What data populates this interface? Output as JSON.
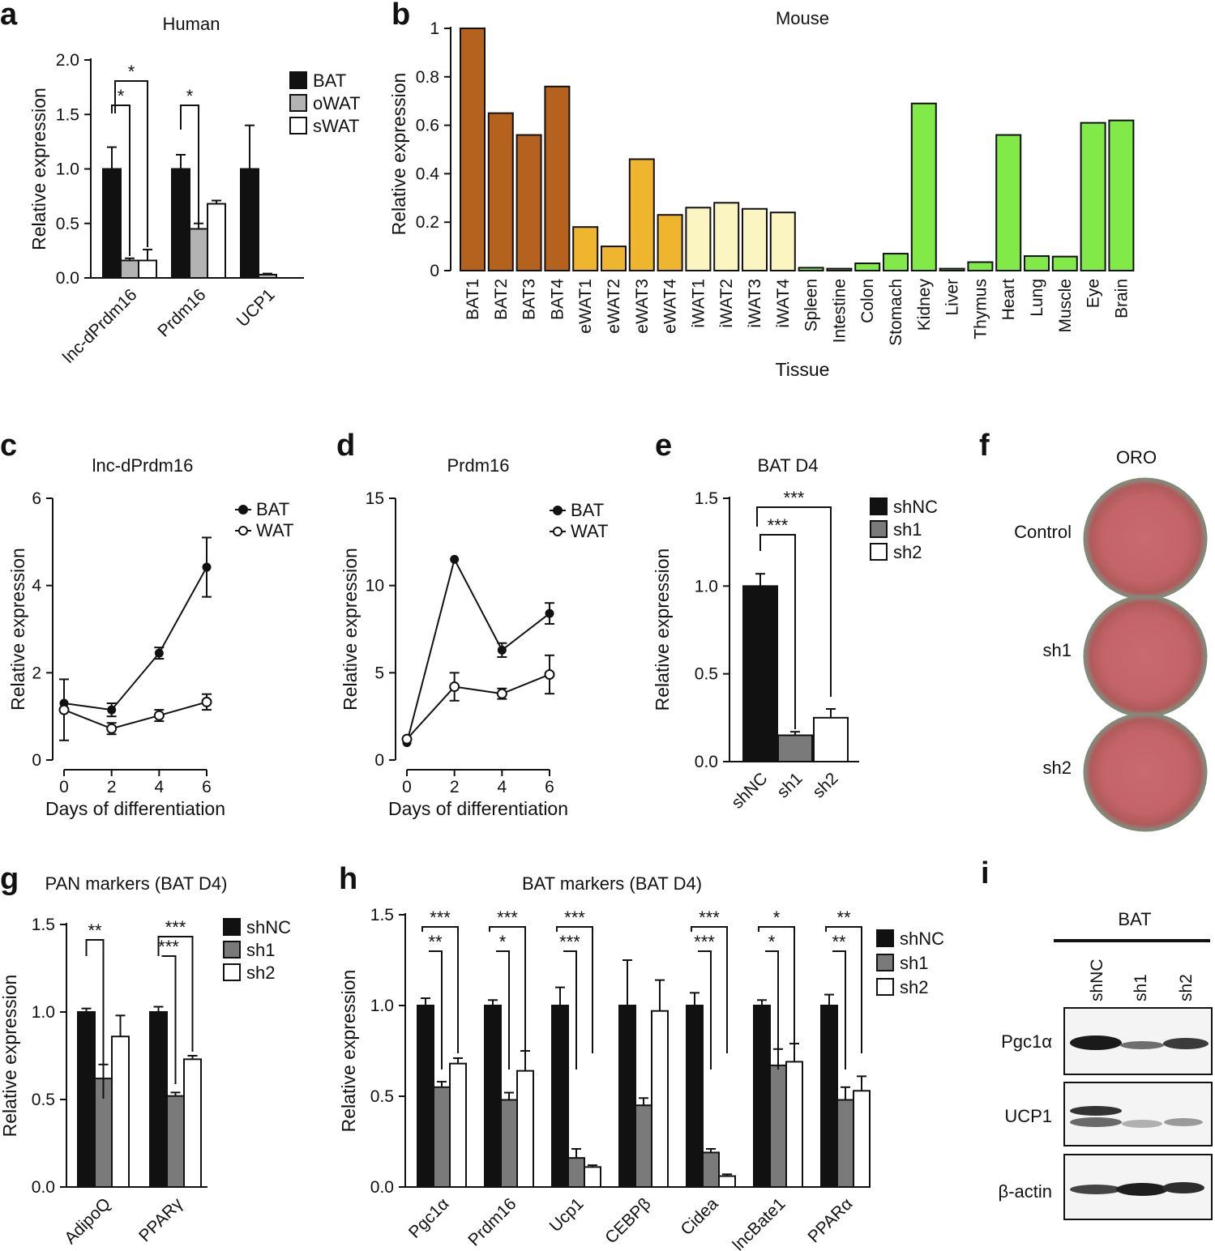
{
  "panels": {
    "a": "a",
    "b": "b",
    "c": "c",
    "d": "d",
    "e": "e",
    "f": "f",
    "g": "g",
    "h": "h",
    "i": "i"
  },
  "colors": {
    "black": "#111111",
    "grey": "#b3b3b3",
    "darkgrey": "#7a7a7a",
    "white": "#ffffff",
    "bat": "#b5621f",
    "ewat": "#efb52f",
    "iwat": "#fbf5c2",
    "tissue": "#82ea48"
  },
  "chart_data": [
    {
      "panel": "a",
      "type": "bar",
      "title": "Human",
      "xlabel": "",
      "ylabel": "Relative expression",
      "ylim": [
        0,
        2
      ],
      "yticks": [
        "0.0",
        "0.5",
        "1.0",
        "1.5",
        "2.0"
      ],
      "categories": [
        "lnc-dPrdm16",
        "Prdm16",
        "UCP1"
      ],
      "series": [
        {
          "name": "BAT",
          "values": [
            1.0,
            1.0,
            1.0
          ],
          "errors": [
            0.2,
            0.13,
            0.4
          ]
        },
        {
          "name": "oWAT",
          "values": [
            0.16,
            0.45,
            0.03
          ],
          "errors": [
            0.02,
            0.05,
            0.01
          ]
        },
        {
          "name": "sWAT",
          "values": [
            0.16,
            0.68,
            0.0
          ],
          "errors": [
            0.1,
            0.03,
            0.0
          ]
        }
      ],
      "annotations": [
        "*",
        "*",
        "*"
      ]
    },
    {
      "panel": "b",
      "type": "bar",
      "title": "Mouse",
      "xlabel": "Tissue",
      "ylabel": "Relative expression",
      "ylim": [
        0,
        1
      ],
      "yticks": [
        "0",
        "0.2",
        "0.4",
        "0.6",
        "0.8",
        "1"
      ],
      "categories": [
        "BAT1",
        "BAT2",
        "BAT3",
        "BAT4",
        "eWAT1",
        "eWAT2",
        "eWAT3",
        "eWAT4",
        "iWAT1",
        "iWAT2",
        "iWAT3",
        "iWAT4",
        "Spleen",
        "Intestine",
        "Colon",
        "Stomach",
        "Kidney",
        "Liver",
        "Thymus",
        "Heart",
        "Lung",
        "Muscle",
        "Eye",
        "Brain"
      ],
      "values": [
        1.0,
        0.65,
        0.56,
        0.76,
        0.18,
        0.1,
        0.46,
        0.23,
        0.26,
        0.28,
        0.255,
        0.24,
        0.012,
        0.008,
        0.03,
        0.07,
        0.69,
        0.008,
        0.035,
        0.56,
        0.06,
        0.058,
        0.61,
        0.62
      ],
      "groups": [
        "bat",
        "bat",
        "bat",
        "bat",
        "ewat",
        "ewat",
        "ewat",
        "ewat",
        "iwat",
        "iwat",
        "iwat",
        "iwat",
        "tissue",
        "tissue",
        "tissue",
        "tissue",
        "tissue",
        "tissue",
        "tissue",
        "tissue",
        "tissue",
        "tissue",
        "tissue",
        "tissue"
      ]
    },
    {
      "panel": "c",
      "type": "line",
      "title": "lnc-dPrdm16",
      "xlabel": "Days of differentiation",
      "ylabel": "Relative expression",
      "xlim": [
        0,
        6
      ],
      "ylim": [
        0,
        6
      ],
      "x": [
        0,
        2,
        4,
        6
      ],
      "xticks": [
        "0",
        "2",
        "4",
        "6"
      ],
      "yticks": [
        "0",
        "2",
        "4",
        "6"
      ],
      "series": [
        {
          "name": "BAT",
          "values": [
            1.3,
            1.15,
            2.45,
            4.42
          ],
          "errors": [
            0.0,
            0.15,
            0.13,
            0.68
          ]
        },
        {
          "name": "WAT",
          "values": [
            1.15,
            0.72,
            1.02,
            1.33
          ],
          "errors": [
            0.7,
            0.13,
            0.13,
            0.18
          ]
        }
      ]
    },
    {
      "panel": "d",
      "type": "line",
      "title": "Prdm16",
      "xlabel": "Days of differentiation",
      "ylabel": "Relative expression",
      "xlim": [
        0,
        6
      ],
      "ylim": [
        0,
        15
      ],
      "x": [
        0,
        2,
        4,
        6
      ],
      "xticks": [
        "0",
        "2",
        "4",
        "6"
      ],
      "yticks": [
        "0",
        "5",
        "10",
        "15"
      ],
      "series": [
        {
          "name": "BAT",
          "values": [
            1.0,
            11.5,
            6.3,
            8.4
          ],
          "errors": [
            0.0,
            0.0,
            0.4,
            0.6
          ]
        },
        {
          "name": "WAT",
          "values": [
            1.2,
            4.2,
            3.8,
            4.9
          ],
          "errors": [
            0.0,
            0.8,
            0.3,
            1.1
          ]
        }
      ]
    },
    {
      "panel": "e",
      "type": "bar",
      "title": "BAT D4",
      "xlabel": "",
      "ylabel": "Relative expression",
      "ylim": [
        0,
        1.5
      ],
      "yticks": [
        "0.0",
        "0.5",
        "1.0",
        "1.5"
      ],
      "categories": [
        "shNC",
        "sh1",
        "sh2"
      ],
      "series": [
        {
          "name": "shNC",
          "values": [
            1.0,
            null,
            null
          ],
          "errors": [
            0.07,
            null,
            null
          ]
        },
        {
          "name": "sh1",
          "values": [
            null,
            0.15,
            null
          ],
          "errors": [
            null,
            0.02,
            null
          ]
        },
        {
          "name": "sh2",
          "values": [
            null,
            null,
            0.25
          ],
          "errors": [
            null,
            null,
            0.05
          ]
        }
      ],
      "annotations": [
        "***",
        "***"
      ]
    },
    {
      "panel": "g",
      "type": "bar",
      "title": "PAN markers (BAT D4)",
      "xlabel": "",
      "ylabel": "Relative expression",
      "ylim": [
        0,
        1.5
      ],
      "yticks": [
        "0.0",
        "0.5",
        "1.0",
        "1.5"
      ],
      "categories": [
        "AdipoQ",
        "PPARγ"
      ],
      "series": [
        {
          "name": "shNC",
          "values": [
            1.0,
            1.0
          ],
          "errors": [
            0.02,
            0.03
          ]
        },
        {
          "name": "sh1",
          "values": [
            0.62,
            0.52
          ],
          "errors": [
            0.08,
            0.02
          ]
        },
        {
          "name": "sh2",
          "values": [
            0.86,
            0.73
          ],
          "errors": [
            0.12,
            0.02
          ]
        }
      ],
      "annotations": [
        "**",
        "***",
        "***"
      ]
    },
    {
      "panel": "h",
      "type": "bar",
      "title": "BAT markers (BAT D4)",
      "xlabel": "",
      "ylabel": "Relative expression",
      "ylim": [
        0,
        1.5
      ],
      "yticks": [
        "0.0",
        "0.5",
        "1.0",
        "1.5"
      ],
      "categories": [
        "Pgc1α",
        "Prdm16",
        "Ucp1",
        "CEBPβ",
        "Cidea",
        "lncBate1",
        "PPARα"
      ],
      "series": [
        {
          "name": "shNC",
          "values": [
            1.0,
            1.0,
            1.0,
            1.0,
            1.0,
            1.0,
            1.0
          ],
          "errors": [
            0.04,
            0.03,
            0.1,
            0.25,
            0.07,
            0.03,
            0.06
          ]
        },
        {
          "name": "sh1",
          "values": [
            0.55,
            0.48,
            0.16,
            0.45,
            0.19,
            0.67,
            0.48
          ],
          "errors": [
            0.03,
            0.04,
            0.05,
            0.04,
            0.02,
            0.09,
            0.07
          ]
        },
        {
          "name": "sh2",
          "values": [
            0.68,
            0.64,
            0.11,
            0.97,
            0.06,
            0.69,
            0.53
          ],
          "errors": [
            0.03,
            0.11,
            0.01,
            0.17,
            0.01,
            0.1,
            0.08
          ]
        }
      ],
      "annotations": [
        "***",
        "**",
        "***",
        "*",
        "***",
        "***",
        "***",
        "***",
        "*",
        "*",
        "**",
        "**"
      ]
    }
  ],
  "panel_f": {
    "title": "ORO",
    "rows": [
      "Control",
      "sh1",
      "sh2"
    ]
  },
  "panel_i": {
    "header": "BAT",
    "lanes": [
      "shNC",
      "sh1",
      "sh2"
    ],
    "blots": [
      "Pgc1α",
      "UCP1",
      "β-actin"
    ]
  }
}
